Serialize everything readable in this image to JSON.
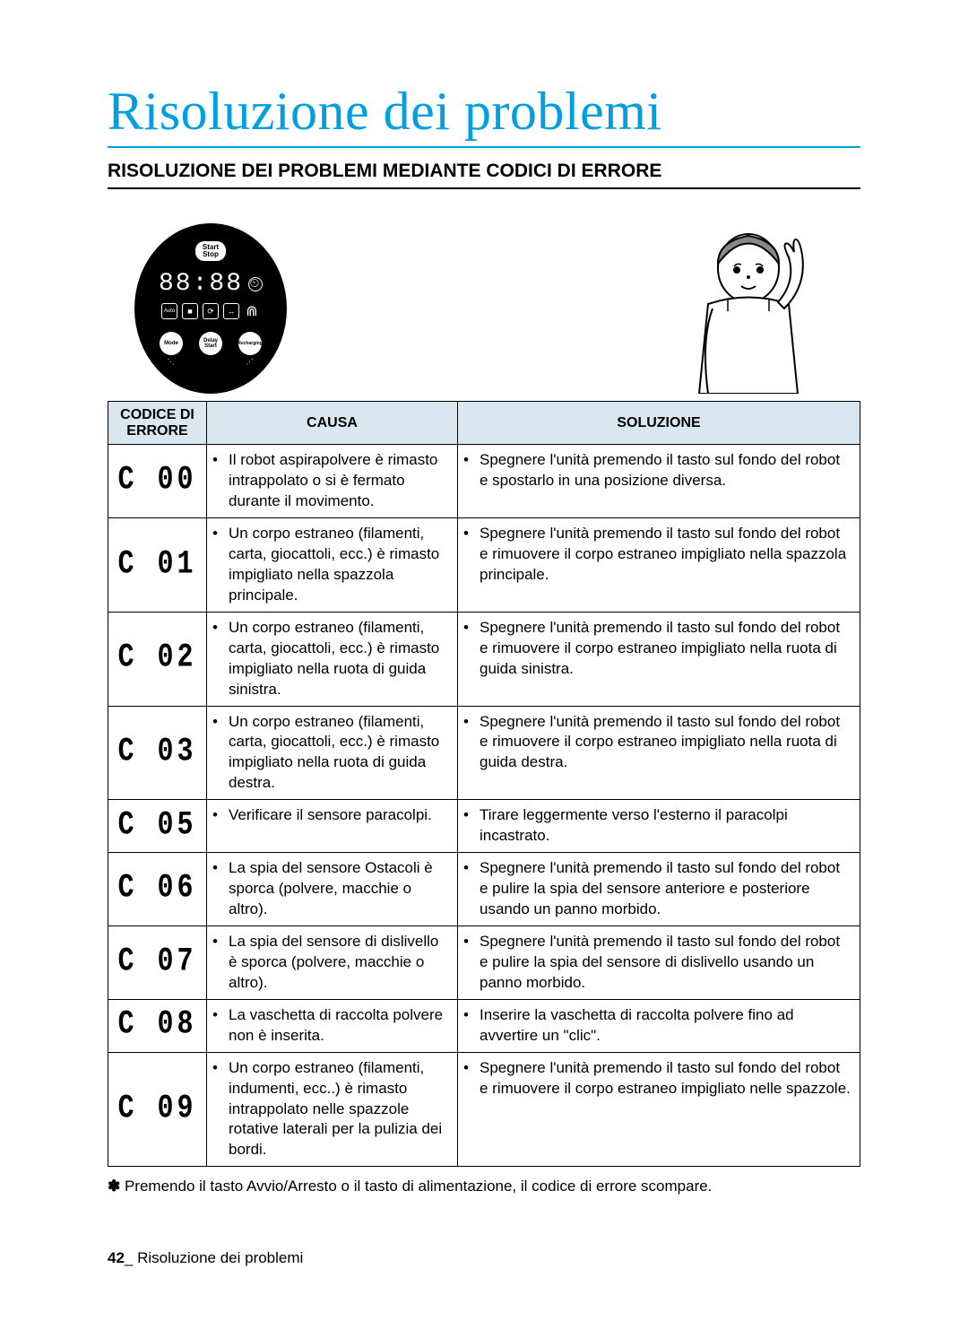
{
  "title": "Risoluzione dei problemi",
  "section_heading": "RISOLUZIONE DEI PROBLEMI MEDIANTE CODICI DI ERRORE",
  "panel": {
    "start_stop": "Start\nStop",
    "digits": "88:88",
    "btn_mode": "Mode",
    "btn_delay": "Delay\nStart",
    "btn_recharge": "Recharging",
    "icons": [
      "Auto",
      "■",
      "⟳",
      "↔",
      "⋒"
    ]
  },
  "table": {
    "headers": [
      "CODICE DI ERRORE",
      "CAUSA",
      "SOLUZIONE"
    ],
    "rows": [
      {
        "code": "C 00",
        "cause": "Il robot aspirapolvere è rimasto intrappolato o si è fermato durante il movimento.",
        "solution": "Spegnere l'unità premendo il tasto sul fondo del robot e spostarlo in una posizione diversa."
      },
      {
        "code": "C 01",
        "cause": "Un corpo estraneo (filamenti, carta, giocattoli, ecc.) è rimasto impigliato nella spazzola principale.",
        "solution": "Spegnere l'unità premendo il tasto sul fondo del robot e rimuovere il corpo estraneo impigliato nella spazzola principale."
      },
      {
        "code": "C 02",
        "cause": "Un corpo estraneo (filamenti, carta, giocattoli, ecc.) è rimasto impigliato nella ruota di guida sinistra.",
        "solution": "Spegnere l'unità premendo il tasto sul fondo del robot e rimuovere il corpo estraneo impigliato nella ruota di guida sinistra."
      },
      {
        "code": "C 03",
        "cause": "Un corpo estraneo (filamenti, carta, giocattoli, ecc.) è rimasto impigliato nella ruota di guida destra.",
        "solution": "Spegnere l'unità premendo il tasto sul fondo del robot e rimuovere il corpo estraneo impigliato nella ruota di guida destra."
      },
      {
        "code": "C 05",
        "cause": "Verificare il sensore paracolpi.",
        "solution": "Tirare leggermente verso l'esterno il paracolpi incastrato."
      },
      {
        "code": "C 06",
        "cause": "La spia del sensore Ostacoli è sporca (polvere, macchie o altro).",
        "solution": "Spegnere l'unità premendo il tasto sul fondo del robot e pulire la spia del sensore anteriore e posteriore usando un panno morbido."
      },
      {
        "code": "C 07",
        "cause": "La spia del sensore di dislivello è sporca (polvere, macchie o altro).",
        "solution": "Spegnere l'unità premendo il tasto sul fondo del robot e pulire la spia del sensore di dislivello usando un panno morbido."
      },
      {
        "code": "C 08",
        "cause": "La vaschetta di raccolta polvere non è inserita.",
        "solution": "Inserire la vaschetta di raccolta polvere fino ad avvertire un \"clic\"."
      },
      {
        "code": "C 09",
        "cause": "Un corpo estraneo (filamenti, indumenti, ecc..) è rimasto intrappolato nelle spazzole rotative laterali per la pulizia dei bordi.",
        "solution": "Spegnere l'unità premendo il tasto sul fondo del robot e rimuovere il corpo estraneo impigliato nelle spazzole."
      }
    ]
  },
  "footnote": "Premendo il tasto Avvio/Arresto o il tasto di alimentazione, il codice di errore scompare.",
  "footer": {
    "page": "42",
    "label": "_ Risoluzione dei problemi"
  },
  "colors": {
    "title": "#00a0e0",
    "header_bg": "#d9e8f0",
    "border": "#000000",
    "text": "#000000",
    "panel_bg": "#000000"
  }
}
